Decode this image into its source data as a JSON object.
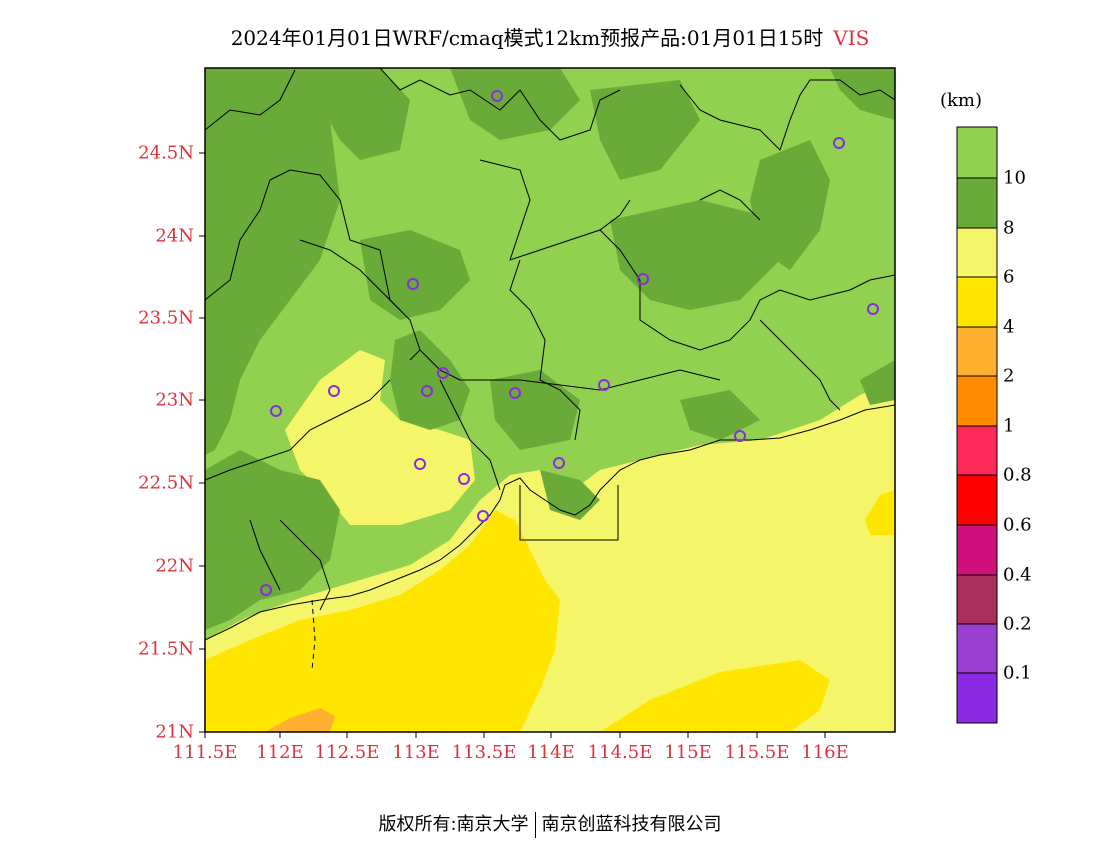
{
  "title": "2024年01月01日WRF/cmaq模式12km预报产品:01月01日15时",
  "variable": "VIS",
  "lat_labels": [
    "24.5N",
    "24N",
    "23.5N",
    "23N",
    "22.5N",
    "22N",
    "21.5N",
    "21N"
  ],
  "lon_labels": [
    "111.5E",
    "112E",
    "112.5E",
    "113E",
    "113.5E",
    "114E",
    "114.5E",
    "115E",
    "115.5E",
    "116E"
  ],
  "colorbar": {
    "unit": "(km)",
    "labels": [
      "10",
      "8",
      "6",
      "4",
      "2",
      "1",
      "0.8",
      "0.6",
      "0.4",
      "0.2",
      "0.1"
    ],
    "colors": [
      "#92d050",
      "#6aaa38",
      "#f5f56a",
      "#ffe600",
      "#ffb030",
      "#ff8c00",
      "#ff2a5a",
      "#ff0000",
      "#d0107a",
      "#a8305a",
      "#9a40d0",
      "#8a2be2"
    ]
  },
  "footer": {
    "left": "版权所有:南京大学",
    "right": "南京创蓝科技有限公司"
  },
  "station_marker_color": "#8a2be2"
}
